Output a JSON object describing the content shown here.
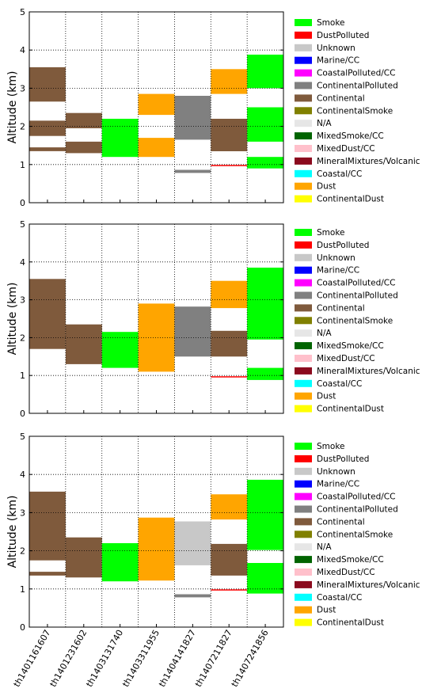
{
  "colors": {
    "Smoke": "#00ff00",
    "DustPolluted": "#ff0000",
    "Unknown": "#c8c8c8",
    "Marine/CC": "#0000ff",
    "CoastalPolluted/CC": "#ff00ff",
    "ContinentalPolluted": "#808080",
    "Continental": "#7f5a3c",
    "ContinentalSmoke": "#808000",
    "N/A": "#e6e6e6",
    "MixedSmoke/CC": "#006400",
    "MixedDust/CC": "#ffc0cb",
    "MineralMixtures/Volcanic": "#8b0a1e",
    "Coastal/CC": "#00ffff",
    "Dust": "#ffa500",
    "ContinentalDust": "#ffff00"
  },
  "chart_data": [
    {
      "type": "bar",
      "ylabel": "Altitude (km)",
      "ylim": [
        0,
        5
      ],
      "yticks": [
        "0",
        "1",
        "2",
        "3",
        "4",
        "5"
      ],
      "grid": true,
      "legend_position": "right",
      "legend": [
        "Smoke",
        "DustPolluted",
        "Unknown",
        "Marine/CC",
        "CoastalPolluted/CC",
        "ContinentalPolluted",
        "Continental",
        "ContinentalSmoke",
        "N/A",
        "MixedSmoke/CC",
        "MixedDust/CC",
        "MineralMixtures/Volcanic",
        "Coastal/CC",
        "Dust",
        "ContinentalDust"
      ],
      "categories": [
        "th1401161607",
        "th1401231602",
        "th1403131740",
        "th1403311955",
        "th1404141827",
        "th1407211827",
        "th1407241856"
      ],
      "layers": [
        {
          "category": "th1401161607",
          "type": "Continental",
          "base": 1.35,
          "top": 1.45
        },
        {
          "category": "th1401161607",
          "type": "Continental",
          "base": 1.75,
          "top": 2.15
        },
        {
          "category": "th1401161607",
          "type": "Continental",
          "base": 2.65,
          "top": 3.55
        },
        {
          "category": "th1401231602",
          "type": "Continental",
          "base": 1.3,
          "top": 1.6
        },
        {
          "category": "th1401231602",
          "type": "Continental",
          "base": 1.95,
          "top": 2.35
        },
        {
          "category": "th1403131740",
          "type": "Smoke",
          "base": 1.2,
          "top": 2.2
        },
        {
          "category": "th1403311955",
          "type": "Dust",
          "base": 1.2,
          "top": 1.7
        },
        {
          "category": "th1403311955",
          "type": "Dust",
          "base": 2.3,
          "top": 2.85
        },
        {
          "category": "th1404141827",
          "type": "ContinentalPolluted",
          "base": 0.78,
          "top": 0.86
        },
        {
          "category": "th1404141827",
          "type": "ContinentalPolluted",
          "base": 1.65,
          "top": 2.8
        },
        {
          "category": "th1407211827",
          "type": "DustPolluted",
          "base": 0.97,
          "top": 0.99
        },
        {
          "category": "th1407211827",
          "type": "Continental",
          "base": 1.35,
          "top": 2.2
        },
        {
          "category": "th1407211827",
          "type": "Dust",
          "base": 2.85,
          "top": 3.5
        },
        {
          "category": "th1407241856",
          "type": "Smoke",
          "base": 0.9,
          "top": 1.2
        },
        {
          "category": "th1407241856",
          "type": "Smoke",
          "base": 1.6,
          "top": 2.5
        },
        {
          "category": "th1407241856",
          "type": "Smoke",
          "base": 3.0,
          "top": 3.88
        }
      ]
    },
    {
      "type": "bar",
      "ylabel": "Altitude (km)",
      "ylim": [
        0,
        5
      ],
      "yticks": [
        "0",
        "1",
        "2",
        "3",
        "4",
        "5"
      ],
      "grid": true,
      "legend_position": "right",
      "legend": [
        "Smoke",
        "DustPolluted",
        "Unknown",
        "Marine/CC",
        "CoastalPolluted/CC",
        "ContinentalPolluted",
        "Continental",
        "ContinentalSmoke",
        "N/A",
        "MixedSmoke/CC",
        "MixedDust/CC",
        "MineralMixtures/Volcanic",
        "Coastal/CC",
        "Dust",
        "ContinentalDust"
      ],
      "categories": [
        "th1401161607",
        "th1401231602",
        "th1403131740",
        "th1403311955",
        "th1404141827",
        "th1407211827",
        "th1407241856"
      ],
      "layers": [
        {
          "category": "th1401161607",
          "type": "Continental",
          "base": 1.7,
          "top": 3.55
        },
        {
          "category": "th1401231602",
          "type": "Continental",
          "base": 1.3,
          "top": 2.35
        },
        {
          "category": "th1403131740",
          "type": "Smoke",
          "base": 1.2,
          "top": 2.15
        },
        {
          "category": "th1403311955",
          "type": "Dust",
          "base": 1.1,
          "top": 2.9
        },
        {
          "category": "th1404141827",
          "type": "ContinentalPolluted",
          "base": 1.5,
          "top": 2.82
        },
        {
          "category": "th1407211827",
          "type": "DustPolluted",
          "base": 0.95,
          "top": 0.98
        },
        {
          "category": "th1407211827",
          "type": "Continental",
          "base": 1.5,
          "top": 2.18
        },
        {
          "category": "th1407211827",
          "type": "Dust",
          "base": 2.78,
          "top": 3.5
        },
        {
          "category": "th1407241856",
          "type": "Smoke",
          "base": 0.88,
          "top": 1.2
        },
        {
          "category": "th1407241856",
          "type": "Smoke",
          "base": 1.95,
          "top": 3.85
        }
      ]
    },
    {
      "type": "bar",
      "ylabel": "Altitude (km)",
      "ylim": [
        0,
        5
      ],
      "yticks": [
        "0",
        "1",
        "2",
        "3",
        "4",
        "5"
      ],
      "grid": true,
      "legend_position": "right",
      "legend": [
        "Smoke",
        "DustPolluted",
        "Unknown",
        "Marine/CC",
        "CoastalPolluted/CC",
        "ContinentalPolluted",
        "Continental",
        "ContinentalSmoke",
        "N/A",
        "MixedSmoke/CC",
        "MixedDust/CC",
        "MineralMixtures/Volcanic",
        "Coastal/CC",
        "Dust",
        "ContinentalDust"
      ],
      "categories": [
        "th1401161607",
        "th1401231602",
        "th1403131740",
        "th1403311955",
        "th1404141827",
        "th1407211827",
        "th1407241856"
      ],
      "xticklabels_visible": true,
      "layers": [
        {
          "category": "th1401161607",
          "type": "Continental",
          "base": 1.35,
          "top": 1.45
        },
        {
          "category": "th1401161607",
          "type": "Continental",
          "base": 1.75,
          "top": 3.55
        },
        {
          "category": "th1401231602",
          "type": "Continental",
          "base": 1.3,
          "top": 2.35
        },
        {
          "category": "th1403131740",
          "type": "Smoke",
          "base": 1.2,
          "top": 2.2
        },
        {
          "category": "th1403311955",
          "type": "Dust",
          "base": 1.22,
          "top": 2.87
        },
        {
          "category": "th1404141827",
          "type": "ContinentalPolluted",
          "base": 0.78,
          "top": 0.86
        },
        {
          "category": "th1404141827",
          "type": "Unknown",
          "base": 1.62,
          "top": 2.77
        },
        {
          "category": "th1407211827",
          "type": "DustPolluted",
          "base": 0.96,
          "top": 0.99
        },
        {
          "category": "th1407211827",
          "type": "Continental",
          "base": 1.35,
          "top": 2.18
        },
        {
          "category": "th1407211827",
          "type": "Dust",
          "base": 2.82,
          "top": 3.48
        },
        {
          "category": "th1407241856",
          "type": "Smoke",
          "base": 0.88,
          "top": 1.68
        },
        {
          "category": "th1407241856",
          "type": "Smoke",
          "base": 2.02,
          "top": 3.86
        }
      ]
    }
  ]
}
